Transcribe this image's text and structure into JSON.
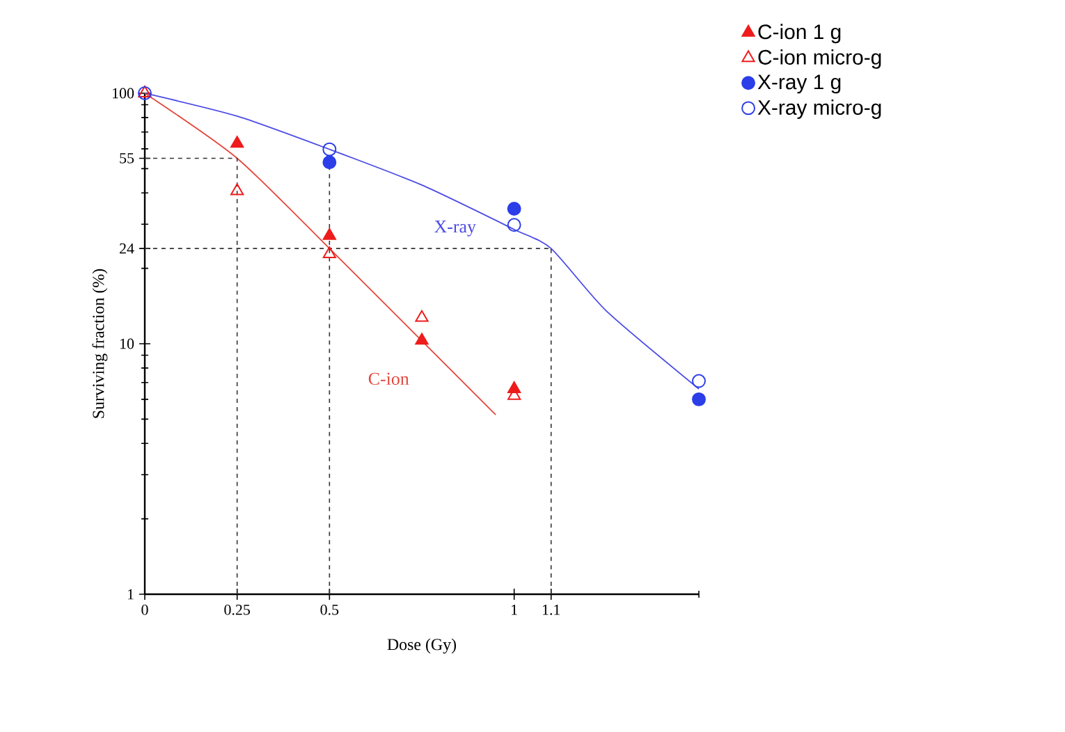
{
  "chart_data": {
    "type": "scatter",
    "xlabel": "Dose (Gy)",
    "ylabel": "Surviving fraction (%)",
    "log": "y",
    "xlim": [
      0,
      1.5
    ],
    "ylim": [
      1,
      100
    ],
    "xticks": [
      0,
      0.25,
      0.5,
      1,
      1.1,
      {
        "value": 1.5,
        "label": null
      }
    ],
    "yticks": [
      1,
      10,
      24,
      55,
      100,
      {
        "value": 2,
        "label": null
      },
      {
        "value": 3,
        "label": null
      },
      {
        "value": 4,
        "label": null
      },
      {
        "value": 5,
        "label": null
      },
      {
        "value": 6,
        "label": null
      },
      {
        "value": 7,
        "label": null
      },
      {
        "value": 8,
        "label": null
      },
      {
        "value": 9,
        "label": null
      },
      {
        "value": 20,
        "label": null
      },
      {
        "value": 30,
        "label": null
      },
      {
        "value": 40,
        "label": null
      },
      {
        "value": 50,
        "label": null
      },
      {
        "value": 60,
        "label": null
      },
      {
        "value": 70,
        "label": null
      },
      {
        "value": 80,
        "label": null
      },
      {
        "value": 90,
        "label": null
      }
    ],
    "grid": false,
    "legend": "top right",
    "series": [
      {
        "name": "C-ion 1 g",
        "marker": "triangle",
        "color": "#ee1c1c",
        "x": [
          0.25,
          0.5,
          0.75,
          1.0
        ],
        "values": [
          63,
          27,
          10.3,
          6.6
        ]
      },
      {
        "name": "C-ion micro-g",
        "marker": "triangle-open",
        "color": "#ee1c1c",
        "x": [
          0,
          0.25,
          0.5,
          0.75,
          1.0
        ],
        "values": [
          100,
          40.7,
          22.8,
          12.7,
          6.2
        ]
      },
      {
        "name": "X-ray 1 g",
        "marker": "circle",
        "color": "#2b3ee8",
        "x": [
          0.5,
          1.0,
          1.5
        ],
        "values": [
          53,
          34.6,
          6.0
        ]
      },
      {
        "name": "X-ray micro-g",
        "marker": "circle-open",
        "color": "#2b3ee8",
        "x": [
          0,
          0.5,
          1.0,
          1.5
        ],
        "values": [
          100,
          59.7,
          29.8,
          7.1
        ]
      },
      {
        "type": "line",
        "line_style": "solid",
        "color": "#4b4be6",
        "x": [
          0,
          0.25,
          0.5,
          0.75,
          1.0,
          1.1,
          1.25,
          1.5
        ],
        "values": [
          100,
          81,
          59.7,
          43,
          28.6,
          24,
          13.5,
          6.6
        ]
      },
      {
        "type": "line",
        "line_style": "solid",
        "color": "#e4473c",
        "x": [
          0,
          0.25,
          0.5,
          0.95
        ],
        "values": [
          100,
          55,
          24,
          5.2
        ]
      }
    ],
    "ref_lines": [
      {
        "axis": "y",
        "value": 55,
        "line_style": "dashed",
        "color": "#333333"
      },
      {
        "axis": "x",
        "value": 0.25,
        "line_style": "dashed",
        "color": "#333333"
      },
      {
        "axis": "x",
        "value": 0.5,
        "line_style": "dashed",
        "color": "#333333"
      },
      {
        "axis": "y",
        "value": 24,
        "line_style": "dashed",
        "color": "#333333"
      },
      {
        "axis": "x",
        "value": 1.1,
        "line_style": "dashed",
        "color": "#333333"
      }
    ],
    "annotations": [
      "X-ray",
      "C-ion"
    ]
  }
}
